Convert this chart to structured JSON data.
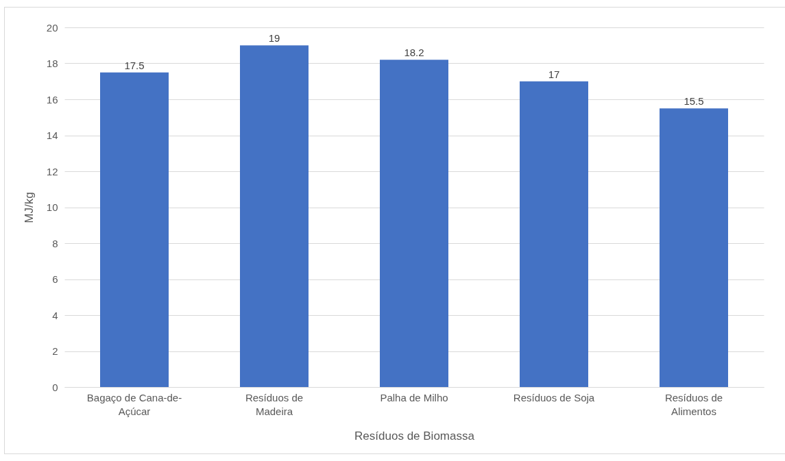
{
  "chart_data": {
    "type": "bar",
    "xlabel": "Resíduos de Biomassa",
    "ylabel": "MJ/kg",
    "categories": [
      "Bagaço de Cana-de-Açúcar",
      "Resíduos de Madeira",
      "Palha de Milho",
      "Resíduos de Soja",
      "Resíduos de Alimentos"
    ],
    "values": [
      17.5,
      19,
      18.2,
      17,
      15.5
    ],
    "color": "#4472c4",
    "ylim": [
      0,
      20
    ],
    "yticks": [
      0,
      2,
      4,
      6,
      8,
      10,
      12,
      14,
      16,
      18,
      20
    ],
    "grid": "y",
    "data_labels": true
  }
}
